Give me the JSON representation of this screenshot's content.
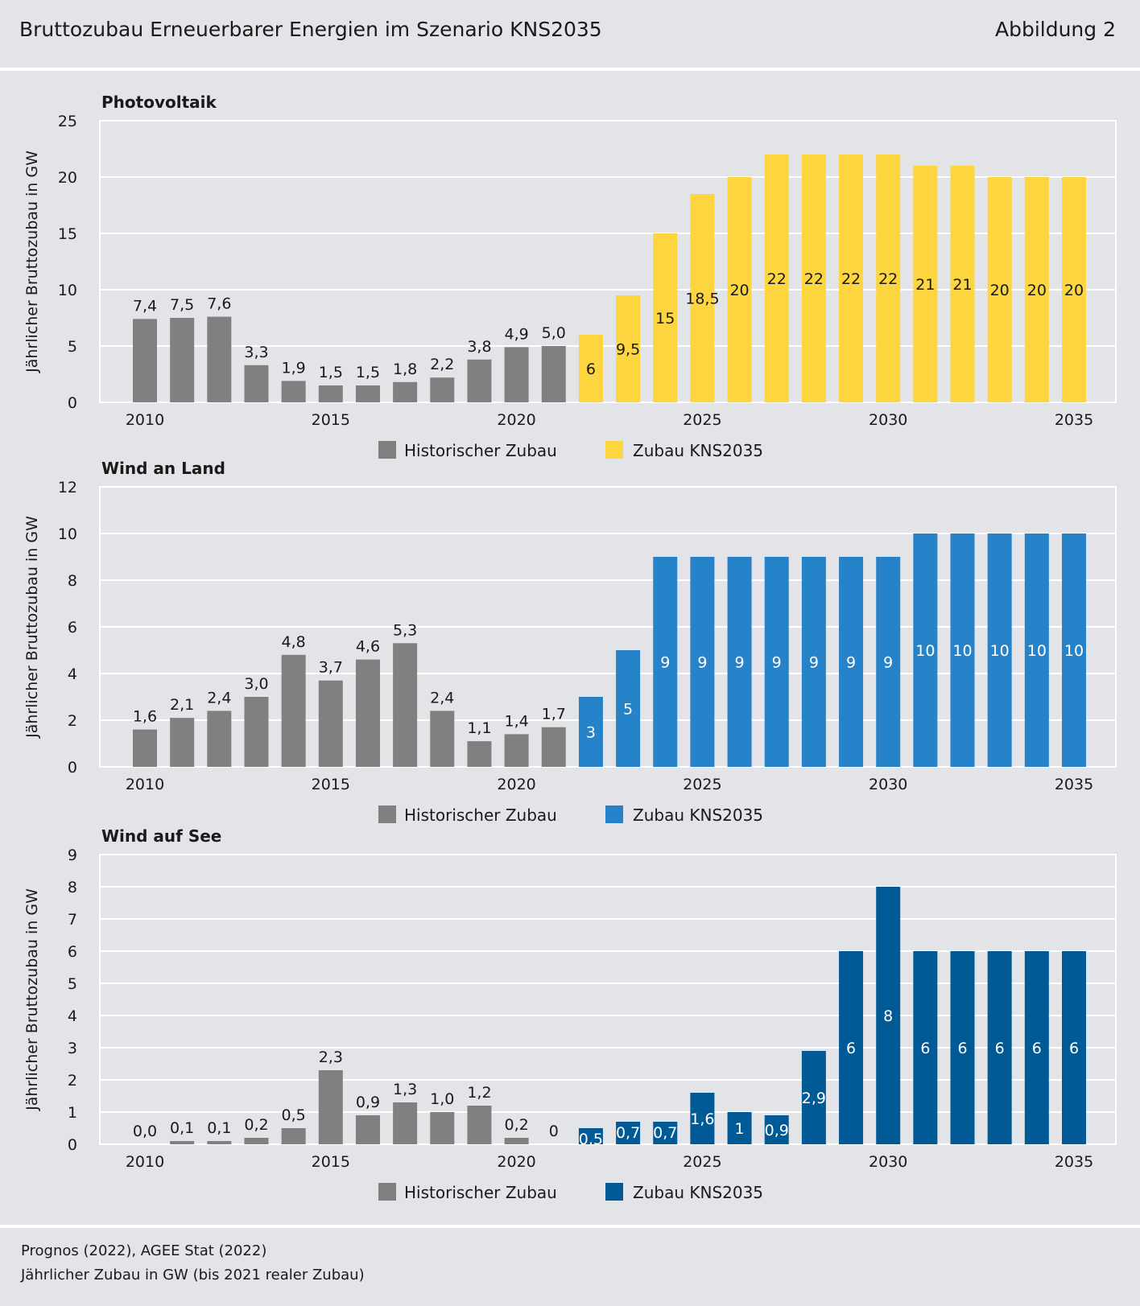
{
  "header": {
    "title": "Bruttozubau Erneuerbarer Energien im Szenario KNS2035",
    "figure": "Abbildung 2"
  },
  "footer": {
    "source": "Prognos (2022), AGEE Stat (2022)",
    "note": "Jährlicher Zubau in GW (bis 2021 realer Zubau)"
  },
  "colors": {
    "historic": "#808080",
    "pv": "#fdd53e",
    "wind_land": "#2783c9",
    "wind_sea": "#005a96",
    "background": "#e3e4e8"
  },
  "chart_data": [
    {
      "type": "bar",
      "title": "Photovoltaik",
      "ylabel": "Jährlicher Bruttozubau in GW",
      "ylim": [
        0,
        25
      ],
      "yticks": [
        "0",
        "5",
        "10",
        "15",
        "20",
        "25"
      ],
      "xticks": [
        "2010",
        "2015",
        "2020",
        "2025",
        "2030",
        "2035"
      ],
      "years": [
        2010,
        2011,
        2012,
        2013,
        2014,
        2015,
        2016,
        2017,
        2018,
        2019,
        2020,
        2021,
        2022,
        2023,
        2024,
        2025,
        2026,
        2027,
        2028,
        2029,
        2030,
        2031,
        2032,
        2033,
        2034,
        2035
      ],
      "values": [
        7.4,
        7.5,
        7.6,
        3.3,
        1.9,
        1.5,
        1.5,
        1.8,
        2.2,
        3.8,
        4.9,
        5.0,
        6,
        9.5,
        15,
        18.5,
        20,
        22,
        22,
        22,
        22,
        21,
        21,
        20,
        20,
        20
      ],
      "labels": [
        "7,4",
        "7,5",
        "7,6",
        "3,3",
        "1,9",
        "1,5",
        "1,5",
        "1,8",
        "2,2",
        "3,8",
        "4,9",
        "5,0",
        "6",
        "9,5",
        "15",
        "18,5",
        "20",
        "22",
        "22",
        "22",
        "22",
        "21",
        "21",
        "20",
        "20",
        "20"
      ],
      "historic_until": 2021,
      "legend": [
        "Historischer Zubau",
        "Zubau KNS2035"
      ]
    },
    {
      "type": "bar",
      "title": "Wind an Land",
      "ylabel": "Jährlicher Bruttozubau in GW",
      "ylim": [
        0,
        12
      ],
      "yticks": [
        "0",
        "2",
        "4",
        "6",
        "8",
        "10",
        "12"
      ],
      "xticks": [
        "2010",
        "2015",
        "2020",
        "2025",
        "2030",
        "2035"
      ],
      "years": [
        2010,
        2011,
        2012,
        2013,
        2014,
        2015,
        2016,
        2017,
        2018,
        2019,
        2020,
        2021,
        2022,
        2023,
        2024,
        2025,
        2026,
        2027,
        2028,
        2029,
        2030,
        2031,
        2032,
        2033,
        2034,
        2035
      ],
      "values": [
        1.6,
        2.1,
        2.4,
        3.0,
        4.8,
        3.7,
        4.6,
        5.3,
        2.4,
        1.1,
        1.4,
        1.7,
        3,
        5,
        9,
        9,
        9,
        9,
        9,
        9,
        9,
        10,
        10,
        10,
        10,
        10
      ],
      "labels": [
        "1,6",
        "2,1",
        "2,4",
        "3,0",
        "4,8",
        "3,7",
        "4,6",
        "5,3",
        "2,4",
        "1,1",
        "1,4",
        "1,7",
        "3",
        "5",
        "9",
        "9",
        "9",
        "9",
        "9",
        "9",
        "9",
        "10",
        "10",
        "10",
        "10",
        "10"
      ],
      "historic_until": 2021,
      "legend": [
        "Historischer Zubau",
        "Zubau KNS2035"
      ]
    },
    {
      "type": "bar",
      "title": "Wind auf See",
      "ylabel": "Jährlicher Bruttozubau in GW",
      "ylim": [
        0,
        9
      ],
      "yticks": [
        "0",
        "1",
        "2",
        "3",
        "4",
        "5",
        "6",
        "7",
        "8",
        "9"
      ],
      "xticks": [
        "2010",
        "2015",
        "2020",
        "2025",
        "2030",
        "2035"
      ],
      "years": [
        2010,
        2011,
        2012,
        2013,
        2014,
        2015,
        2016,
        2017,
        2018,
        2019,
        2020,
        2021,
        2022,
        2023,
        2024,
        2025,
        2026,
        2027,
        2028,
        2029,
        2030,
        2031,
        2032,
        2033,
        2034,
        2035
      ],
      "values": [
        0.0,
        0.1,
        0.1,
        0.2,
        0.5,
        2.3,
        0.9,
        1.3,
        1.0,
        1.2,
        0.2,
        0,
        0.5,
        0.7,
        0.7,
        1.6,
        1,
        0.9,
        2.9,
        6,
        8,
        6,
        6,
        6,
        6,
        6
      ],
      "labels": [
        "0,0",
        "0,1",
        "0,1",
        "0,2",
        "0,5",
        "2,3",
        "0,9",
        "1,3",
        "1,0",
        "1,2",
        "0,2",
        "0",
        "0,5",
        "0,7",
        "0,7",
        "1,6",
        "1",
        "0,9",
        "2,9",
        "6",
        "8",
        "6",
        "6",
        "6",
        "6",
        "6"
      ],
      "historic_until": 2021,
      "legend": [
        "Historischer Zubau",
        "Zubau KNS2035"
      ]
    }
  ]
}
